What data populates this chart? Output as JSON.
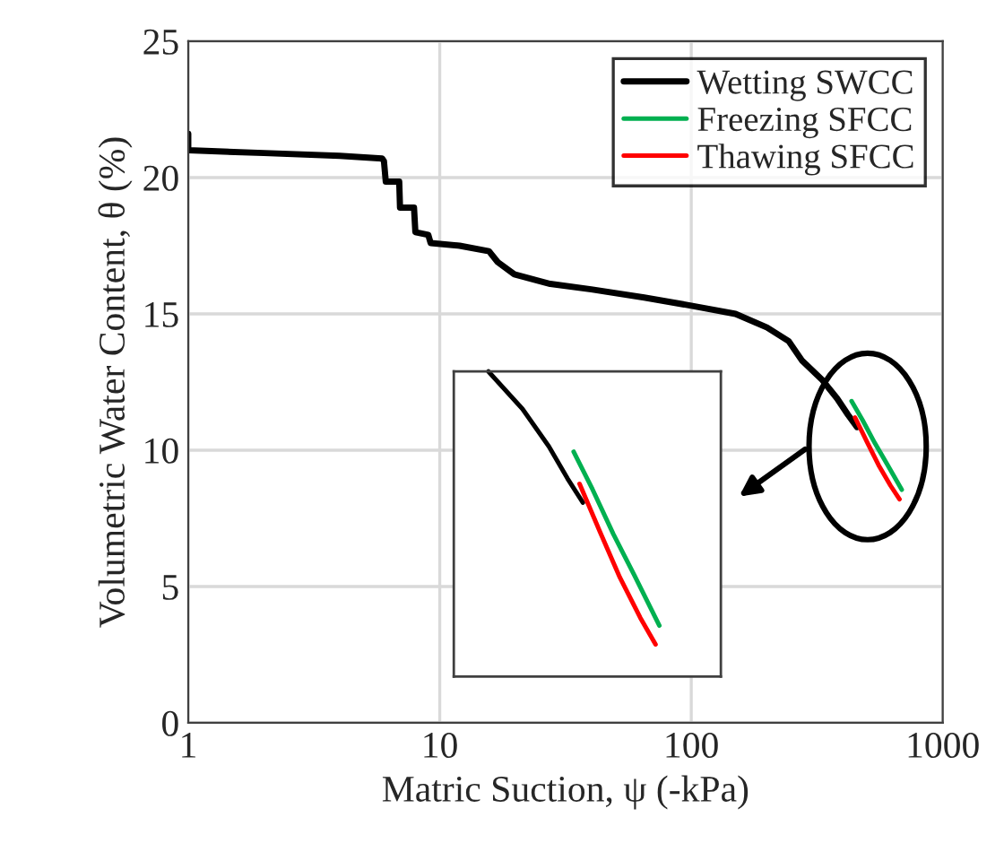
{
  "chart_data": {
    "type": "line",
    "xlabel": "Matric Suction, ψ (-kPa)",
    "ylabel": "Volumetric Water Content, θ (%)",
    "log": "x",
    "xlim": [
      1,
      1000
    ],
    "xticks": [
      1,
      10,
      100,
      1000
    ],
    "ylim": [
      0,
      25
    ],
    "yticks": [
      0,
      5,
      10,
      15,
      20,
      25
    ],
    "grid": true,
    "legend": "top right",
    "series": [
      {
        "name": "Wetting SWCC",
        "color": "#000000",
        "x": [
          1,
          1,
          2,
          4,
          5.9,
          6,
          6.1,
          6.9,
          6.95,
          7.9,
          8.0,
          9.0,
          9.2,
          12,
          15.7,
          17,
          19.8,
          27.5,
          40,
          65,
          100,
          150,
          200,
          244,
          275,
          330,
          380,
          420,
          456
        ],
        "values": [
          21.6,
          21.0,
          20.9,
          20.8,
          20.7,
          20.6,
          19.85,
          19.85,
          18.9,
          18.9,
          18.0,
          17.9,
          17.6,
          17.5,
          17.3,
          16.9,
          16.45,
          16.1,
          15.9,
          15.6,
          15.3,
          15.0,
          14.5,
          14.0,
          13.3,
          12.6,
          11.9,
          11.3,
          10.85
        ]
      },
      {
        "name": "Freezing SFCC",
        "color": "#00b050",
        "x": [
          434,
          480,
          537,
          600,
          687
        ],
        "values": [
          11.8,
          11.1,
          10.26,
          9.5,
          8.55
        ]
      },
      {
        "name": "Thawing SFCC",
        "color": "#ff0000",
        "x": [
          448,
          500,
          556,
          620,
          673
        ],
        "values": [
          11.2,
          10.3,
          9.45,
          8.7,
          8.2
        ]
      }
    ]
  }
}
